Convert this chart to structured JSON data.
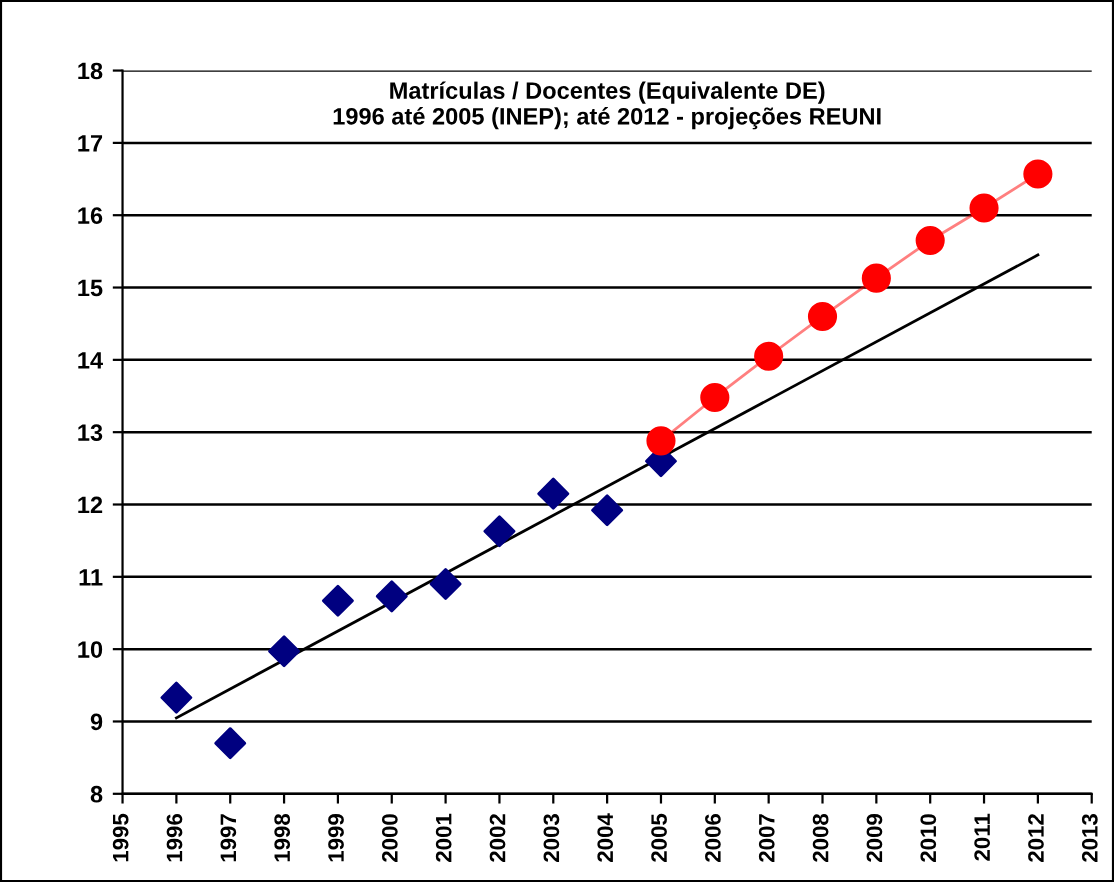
{
  "chart_data": {
    "type": "scatter",
    "title": "Matrículas / Docentes (Equivalente DE)\n1996 até 2005 (INEP); até 2012 - projeções REUNI",
    "xlim": [
      1995,
      2013
    ],
    "xticks": [
      1995,
      1996,
      1997,
      1998,
      1999,
      2000,
      2001,
      2002,
      2003,
      2004,
      2005,
      2006,
      2007,
      2008,
      2009,
      2010,
      2011,
      2012,
      2013
    ],
    "ylim": [
      8,
      18
    ],
    "yticks": [
      8,
      9,
      10,
      11,
      12,
      13,
      14,
      15,
      16,
      17,
      18
    ],
    "grid": "y",
    "legend": false,
    "series": [
      {
        "marker": "diamond",
        "color": "#000080",
        "x": [
          1996,
          1997,
          1998,
          1999,
          2000,
          2001,
          2002,
          2003,
          2004,
          2005
        ],
        "values": [
          9.33,
          8.7,
          9.97,
          10.67,
          10.73,
          10.9,
          11.63,
          12.15,
          11.92,
          12.6
        ]
      },
      {
        "type": "line",
        "marker": "circle",
        "color": "#ff0000",
        "x": [
          2005,
          2006,
          2007,
          2008,
          2009,
          2010,
          2011,
          2012
        ],
        "values": [
          12.88,
          13.48,
          14.05,
          14.6,
          15.13,
          15.65,
          16.1,
          16.57
        ]
      },
      {
        "type": "line",
        "marker": "none",
        "color": "#000000",
        "x": [
          1996,
          2012
        ],
        "values": [
          9.05,
          15.45
        ]
      }
    ]
  }
}
